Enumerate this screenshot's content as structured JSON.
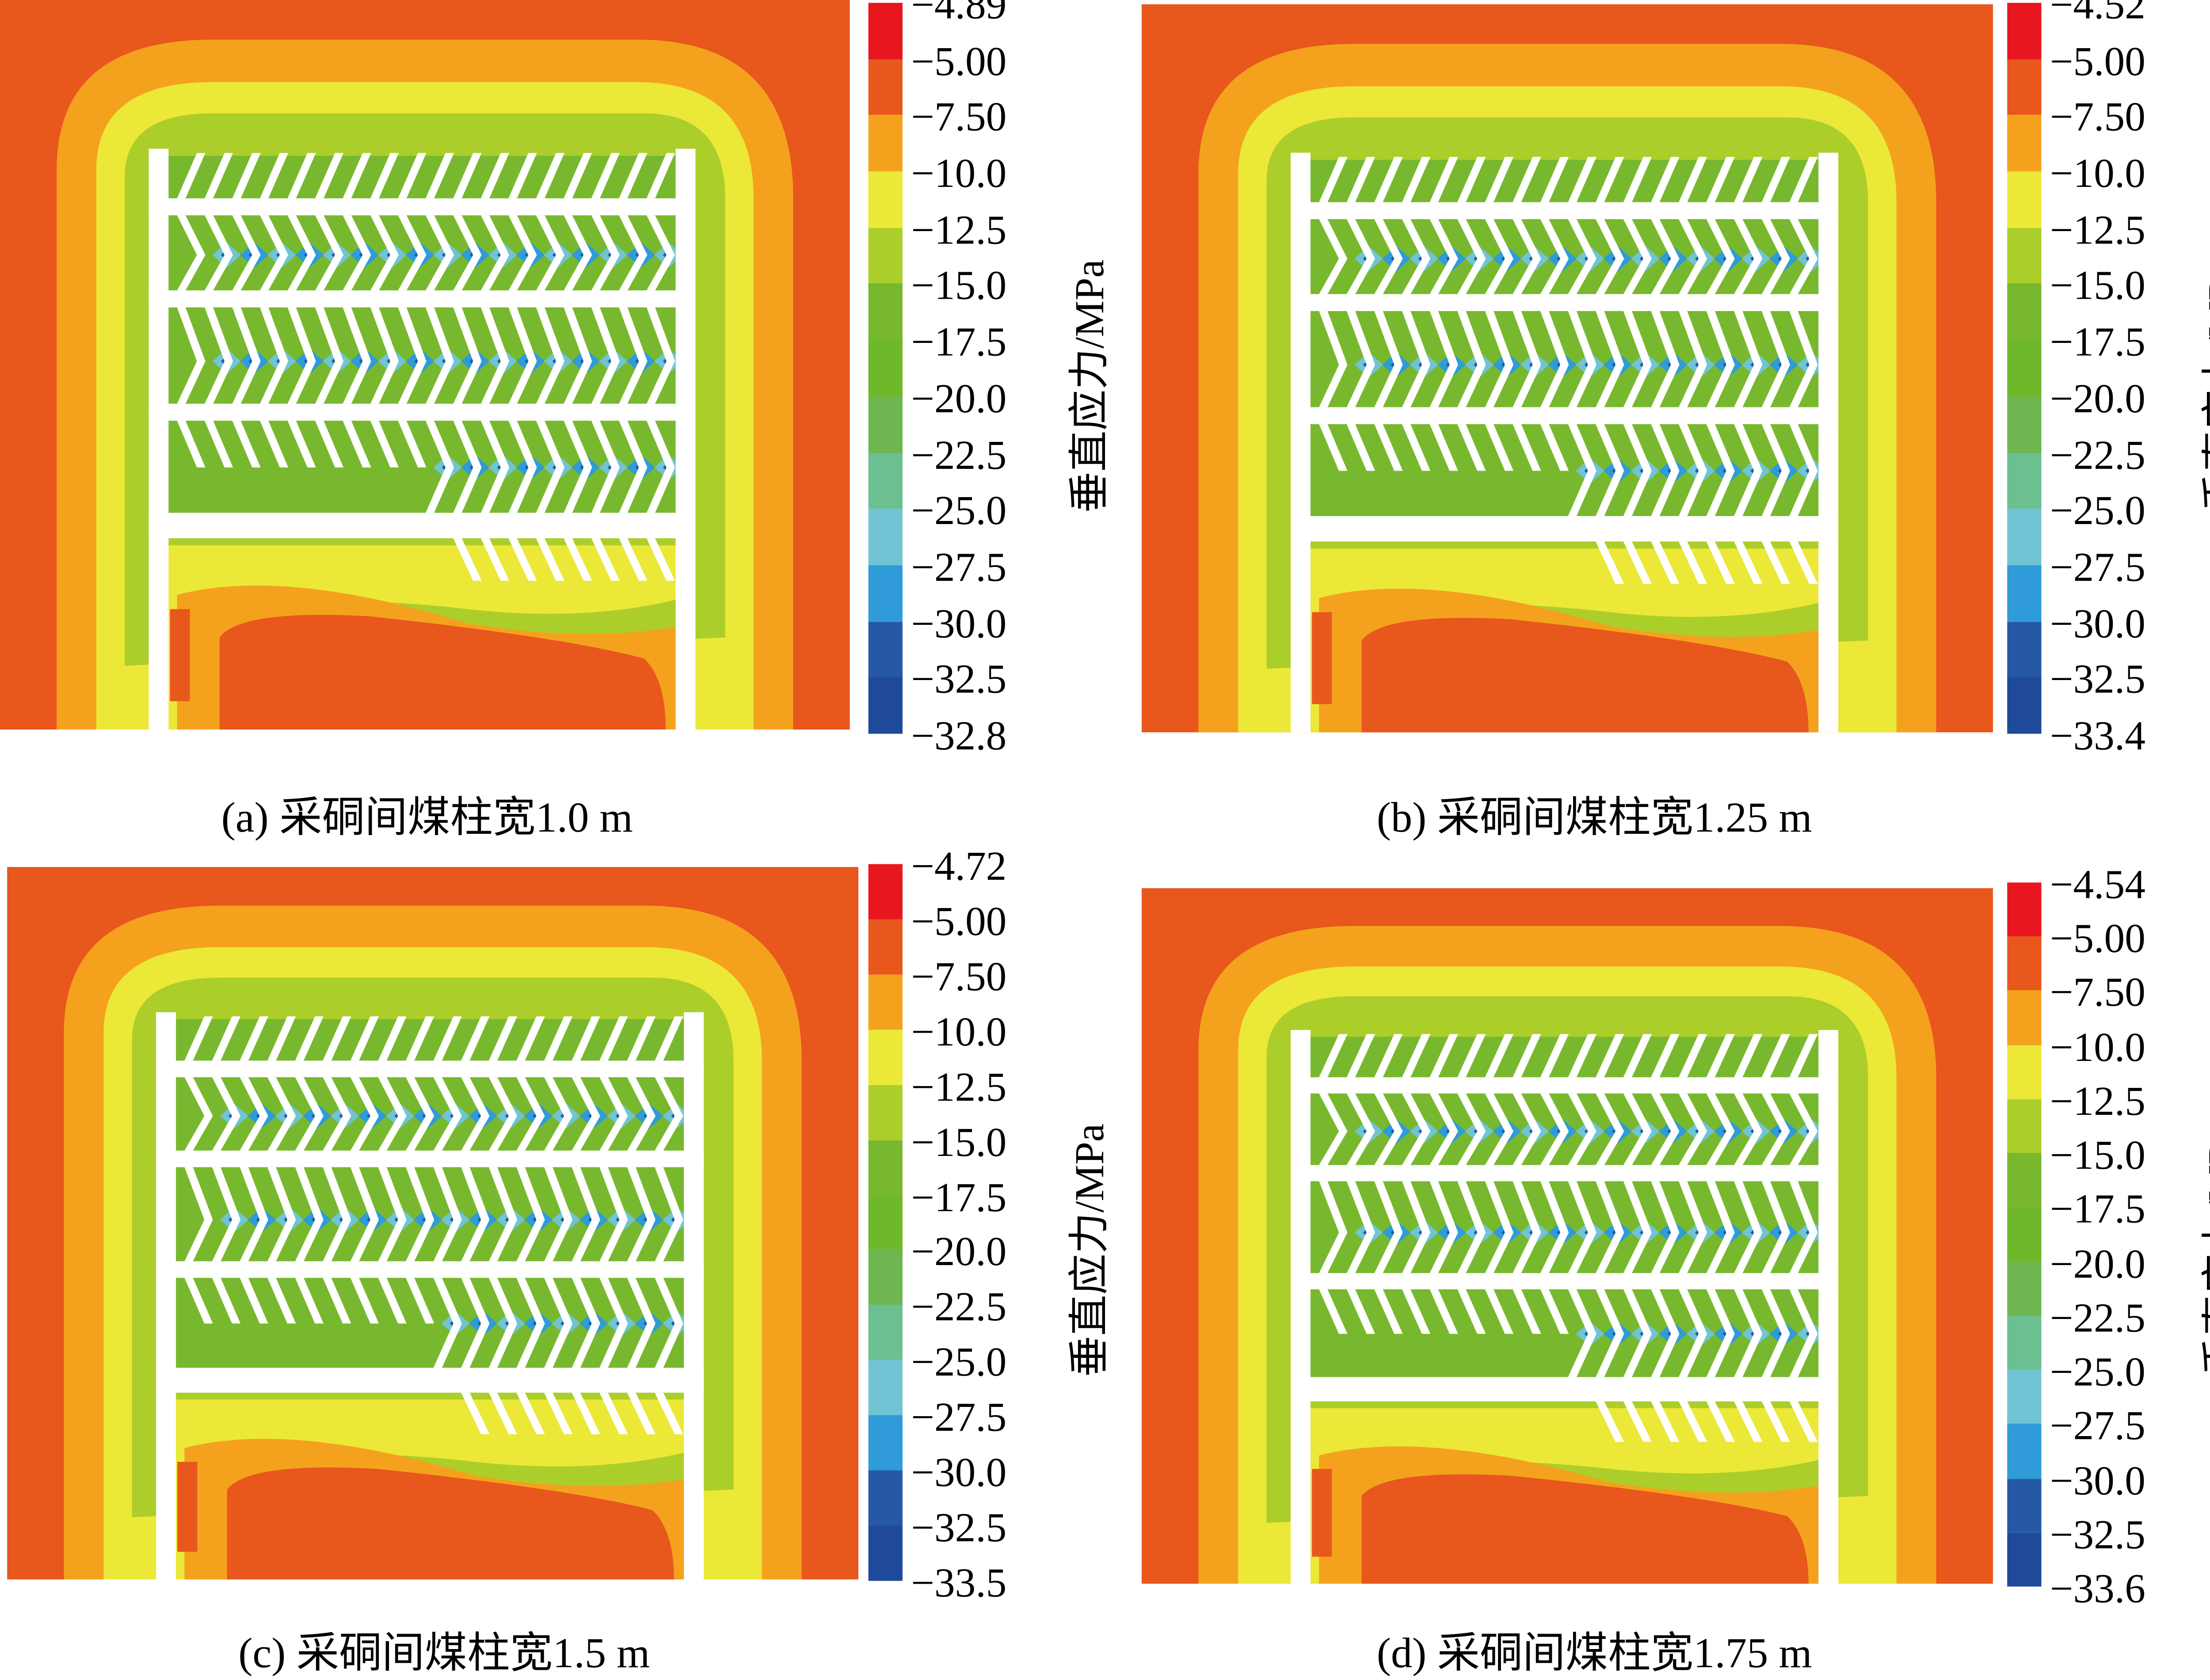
{
  "chart_data": [
    {
      "type": "heatmap",
      "title": "(a) 采硐间煤柱宽1.0 m",
      "colorbar_label": "垂直应力/MPa",
      "levels": [
        "-4.89",
        "-5.00",
        "-7.50",
        "-10.0",
        "-12.5",
        "-15.0",
        "-17.5",
        "-20.0",
        "-22.5",
        "-25.0",
        "-27.5",
        "-30.0",
        "-32.5",
        "-32.8"
      ]
    },
    {
      "type": "heatmap",
      "title": "(b) 采硐间煤柱宽1.25 m",
      "colorbar_label": "垂直应力/MPa",
      "levels": [
        "-4.52",
        "-5.00",
        "-7.50",
        "-10.0",
        "-12.5",
        "-15.0",
        "-17.5",
        "-20.0",
        "-22.5",
        "-25.0",
        "-27.5",
        "-30.0",
        "-32.5",
        "-33.4"
      ]
    },
    {
      "type": "heatmap",
      "title": "(c) 采硐间煤柱宽1.5 m",
      "colorbar_label": "垂直应力/MPa",
      "levels": [
        "-4.72",
        "-5.00",
        "-7.50",
        "-10.0",
        "-12.5",
        "-15.0",
        "-17.5",
        "-20.0",
        "-22.5",
        "-25.0",
        "-27.5",
        "-30.0",
        "-32.5",
        "-33.5"
      ]
    },
    {
      "type": "heatmap",
      "title": "(d) 采硐间煤柱宽1.75 m",
      "colorbar_label": "垂直应力/MPa",
      "levels": [
        "-4.54",
        "-5.00",
        "-7.50",
        "-10.0",
        "-12.5",
        "-15.0",
        "-17.5",
        "-20.0",
        "-22.5",
        "-25.0",
        "-27.5",
        "-30.0",
        "-32.5",
        "-33.6"
      ]
    }
  ],
  "colors": [
    "#e8171f",
    "#e8571c",
    "#f4a21e",
    "#ece838",
    "#acce2b",
    "#78b82e",
    "#6eb82a",
    "#6db650",
    "#6bbf91",
    "#70c4d3",
    "#2f9bd8",
    "#2559a7",
    "#1f4a9b"
  ]
}
